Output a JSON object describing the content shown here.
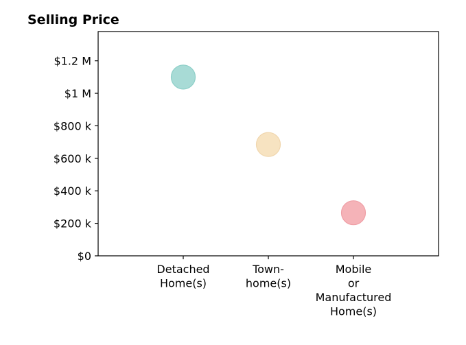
{
  "chart_data": {
    "type": "scatter",
    "title": "Selling Price",
    "xlabel": "",
    "ylabel": "",
    "categories": [
      [
        "Detached",
        "Home(s)"
      ],
      [
        "Town-",
        "home(s)"
      ],
      [
        "Mobile",
        "or",
        "Manufactured",
        "Home(s)"
      ]
    ],
    "values": [
      1100000,
      685000,
      265000
    ],
    "colors": [
      "#a8dbd6",
      "#f7e3c1",
      "#f5b3b8"
    ],
    "edge_colors": [
      "#8ecfc8",
      "#f0d6ad",
      "#ef9fa6"
    ],
    "ylim": [
      0,
      1380000
    ],
    "yticks": [
      {
        "value": 0,
        "label": "$0"
      },
      {
        "value": 200000,
        "label": "$200 k"
      },
      {
        "value": 400000,
        "label": "$400 k"
      },
      {
        "value": 600000,
        "label": "$600 k"
      },
      {
        "value": 800000,
        "label": "$800 k"
      },
      {
        "value": 1000000,
        "label": "$1 M"
      },
      {
        "value": 1200000,
        "label": "$1.2 M"
      }
    ],
    "grid": false,
    "legend": "none"
  }
}
